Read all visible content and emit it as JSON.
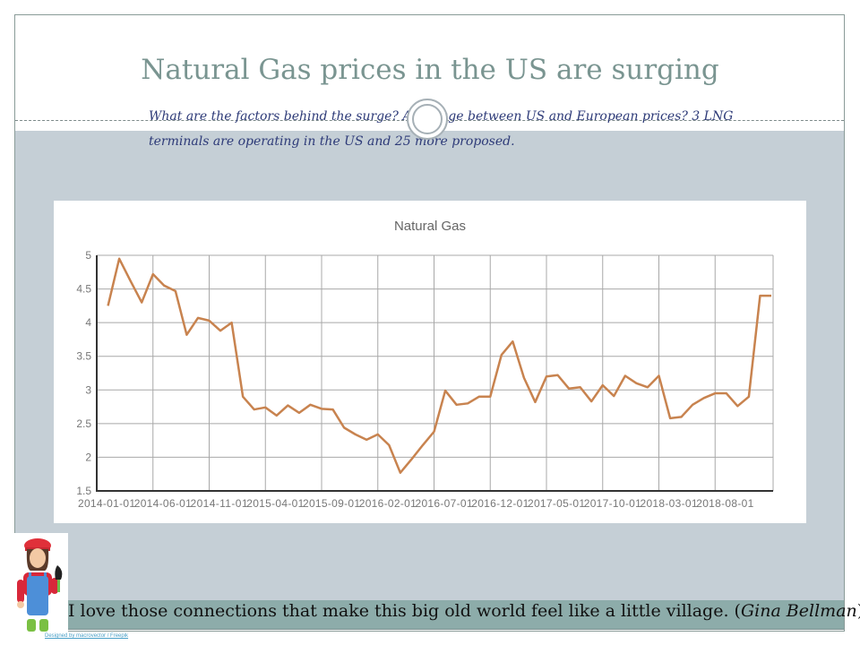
{
  "slide": {
    "title": "Natural Gas prices in the US are surging",
    "subtitle": "What are the factors behind the surge? Arbitrage between US and European prices? 3 LNG terminals are operating in the US and 25 more proposed.",
    "quote_text": "I love those connections that make this big old world feel like a little village. (",
    "quote_author": "Gina Bellman",
    "quote_close": ")",
    "credit": "Designed by macrovector / Freepik",
    "illustration": "gardener-girl-illustration"
  },
  "colors": {
    "title": "#7a9591",
    "subtitle": "#2d3a78",
    "band": "#c5cfd6",
    "quote_band": "#8dacaa",
    "series_line": "#c8834f",
    "grid": "#a8a8a8"
  },
  "chart_data": {
    "type": "line",
    "title": "Natural Gas",
    "xlabel": "",
    "ylabel": "",
    "ylim": [
      1.5,
      5
    ],
    "yticks": [
      "1.5",
      "2",
      "2.5",
      "3",
      "3.5",
      "4",
      "4.5",
      "5"
    ],
    "xticks": [
      "2014-01-01",
      "2014-06-01",
      "2014-11-01",
      "2015-04-01",
      "2015-09-01",
      "2016-02-01",
      "2016-07-01",
      "2016-12-01",
      "2017-05-01",
      "2017-10-01",
      "2018-03-01",
      "2018-08-01"
    ],
    "grid": true,
    "legend": "none",
    "series": [
      {
        "name": "Natural Gas",
        "start": "2014-02",
        "frequency": "monthly",
        "values": [
          4.25,
          4.95,
          4.62,
          4.3,
          4.72,
          4.55,
          4.47,
          3.82,
          4.07,
          4.03,
          3.88,
          4.0,
          2.9,
          2.71,
          2.74,
          2.62,
          2.77,
          2.66,
          2.78,
          2.72,
          2.71,
          2.44,
          2.34,
          2.26,
          2.34,
          2.18,
          1.77,
          1.97,
          2.18,
          2.38,
          2.99,
          2.78,
          2.8,
          2.9,
          2.9,
          3.52,
          3.72,
          3.18,
          2.82,
          3.2,
          3.22,
          3.02,
          3.04,
          2.83,
          3.07,
          2.91,
          3.21,
          3.1,
          3.04,
          3.21,
          2.58,
          2.6,
          2.78,
          2.88,
          2.95,
          2.95,
          2.76,
          2.9,
          4.4,
          4.4
        ]
      }
    ]
  }
}
